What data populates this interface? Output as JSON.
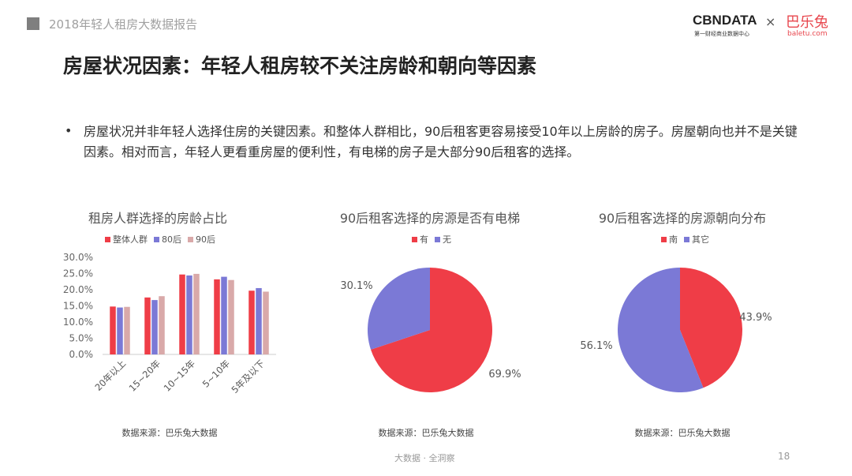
{
  "header": {
    "report_title": "2018年轻人租房大数据报告"
  },
  "logo": {
    "cbn": "CBNDATA",
    "cbn_sub": "第一财经商业数据中心",
    "times": "×",
    "partner": "巴乐兔",
    "partner_sub": "baletu.com"
  },
  "title": "房屋状况因素：年轻人租房较不关注房龄和朝向等因素",
  "bullet": "•",
  "body": "房屋状况并非年轻人选择住房的关键因素。和整体人群相比，90后租客更容易接受10年以上房龄的房子。房屋朝向也并不是关键因素。相对而言，年轻人更看重房屋的便利性，有电梯的房子是大部分90后租客的选择。",
  "colors": {
    "red": "#ef3d47",
    "blue": "#7b79d6",
    "pink": "#d9a9a9"
  },
  "chart_data": [
    {
      "type": "bar",
      "title": "租房人群选择的房龄占比",
      "categories": [
        "20年以上",
        "15~20年",
        "10~15年",
        "5~10年",
        "5年及以下"
      ],
      "series": [
        {
          "name": "整体人群",
          "values": [
            14.8,
            17.6,
            24.7,
            23.2,
            19.7
          ]
        },
        {
          "name": "80后",
          "values": [
            14.5,
            16.8,
            24.4,
            24.0,
            20.5
          ]
        },
        {
          "name": "90后",
          "values": [
            14.7,
            18.0,
            24.9,
            23.0,
            19.4
          ]
        }
      ],
      "yticks": [
        "0.0%",
        "5.0%",
        "10.0%",
        "15.0%",
        "20.0%",
        "25.0%",
        "30.0%"
      ],
      "ylim": [
        0,
        30
      ],
      "legend": "top",
      "source": "数据来源：巴乐兔大数据"
    },
    {
      "type": "pie",
      "title": "90后租客选择的房源是否有电梯",
      "slices": [
        {
          "name": "有",
          "value": 69.9,
          "label": "69.9%"
        },
        {
          "name": "无",
          "value": 30.1,
          "label": "30.1%"
        }
      ],
      "legend": "top",
      "source": "数据来源：巴乐兔大数据"
    },
    {
      "type": "pie",
      "title": "90后租客选择的房源朝向分布",
      "slices": [
        {
          "name": "南",
          "value": 43.9,
          "label": "43.9%"
        },
        {
          "name": "其它",
          "value": 56.1,
          "label": "56.1%"
        }
      ],
      "legend": "top",
      "source": "数据来源：巴乐兔大数据"
    }
  ],
  "footer": "大数据 · 全洞察",
  "page_number": "18"
}
